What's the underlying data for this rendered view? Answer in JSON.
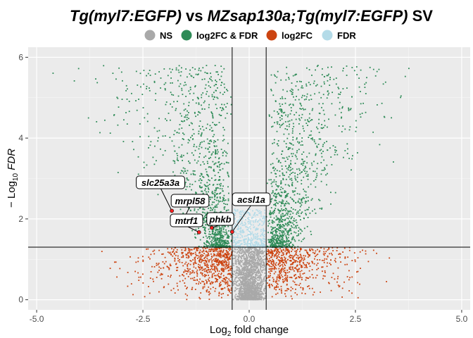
{
  "chart_data": {
    "type": "scatter",
    "subtype": "volcano",
    "title_parts": [
      {
        "text": "Tg(myl7:EGFP)",
        "italic": true
      },
      {
        "text": " vs ",
        "italic": false
      },
      {
        "text": "MZsap130a;Tg(myl7:EGFP)",
        "italic": true
      },
      {
        "text": " SV",
        "italic": false
      }
    ],
    "xlabel": {
      "base": "Log",
      "sub": "2",
      "rest": " fold change"
    },
    "ylabel": {
      "base": "− Log",
      "sub": "10",
      "rest": " FDR"
    },
    "xlim": [
      -5.2,
      5.2
    ],
    "ylim": [
      -0.25,
      6.25
    ],
    "x_ticks": [
      {
        "value": -5.0,
        "label": "-5.0"
      },
      {
        "value": -2.5,
        "label": "-2.5"
      },
      {
        "value": 0.0,
        "label": "0.0"
      },
      {
        "value": 2.5,
        "label": "2.5"
      },
      {
        "value": 5.0,
        "label": "5.0"
      }
    ],
    "y_ticks": [
      {
        "value": 0,
        "label": "0"
      },
      {
        "value": 2,
        "label": "2"
      },
      {
        "value": 4,
        "label": "4"
      },
      {
        "value": 6,
        "label": "6"
      }
    ],
    "grid": true,
    "thresholds": {
      "log2fc": [
        -0.4,
        0.4
      ],
      "neg_log10_fdr": 1.3
    },
    "legend": {
      "position": "top",
      "entries": [
        {
          "label": "NS",
          "color": "#a9a9a9"
        },
        {
          "label": "log2FC & FDR",
          "color": "#2e8b57"
        },
        {
          "label": "log2FC",
          "color": "#cc4411"
        },
        {
          "label": "FDR",
          "color": "#b4dbe8"
        }
      ]
    },
    "point_groups": [
      {
        "category": "NS",
        "color": "#a9a9a9",
        "x_range": [
          -0.4,
          0.4
        ],
        "y_range": [
          0,
          1.3
        ]
      },
      {
        "category": "FDR",
        "color": "#b4dbe8",
        "x_range": [
          -0.4,
          0.4
        ],
        "y_range": [
          1.3,
          2.3
        ]
      },
      {
        "category": "log2FC",
        "color": "#cc4411",
        "x_range": [
          -3.7,
          3.6
        ],
        "y_range": [
          0,
          1.3
        ]
      },
      {
        "category": "log2FC & FDR",
        "color": "#2e8b57",
        "x_range": [
          -4.8,
          4.9
        ],
        "y_range": [
          1.3,
          5.9
        ]
      }
    ],
    "labeled_genes": [
      {
        "gene": "slc25a3a",
        "x": -1.82,
        "y": 2.2
      },
      {
        "gene": "mrpl58",
        "x": -1.55,
        "y": 1.98
      },
      {
        "gene": "mtrf1",
        "x": -1.18,
        "y": 1.67
      },
      {
        "gene": "phkb",
        "x": -0.88,
        "y": 1.78
      },
      {
        "gene": "acsl1a",
        "x": -0.4,
        "y": 1.68
      }
    ]
  }
}
